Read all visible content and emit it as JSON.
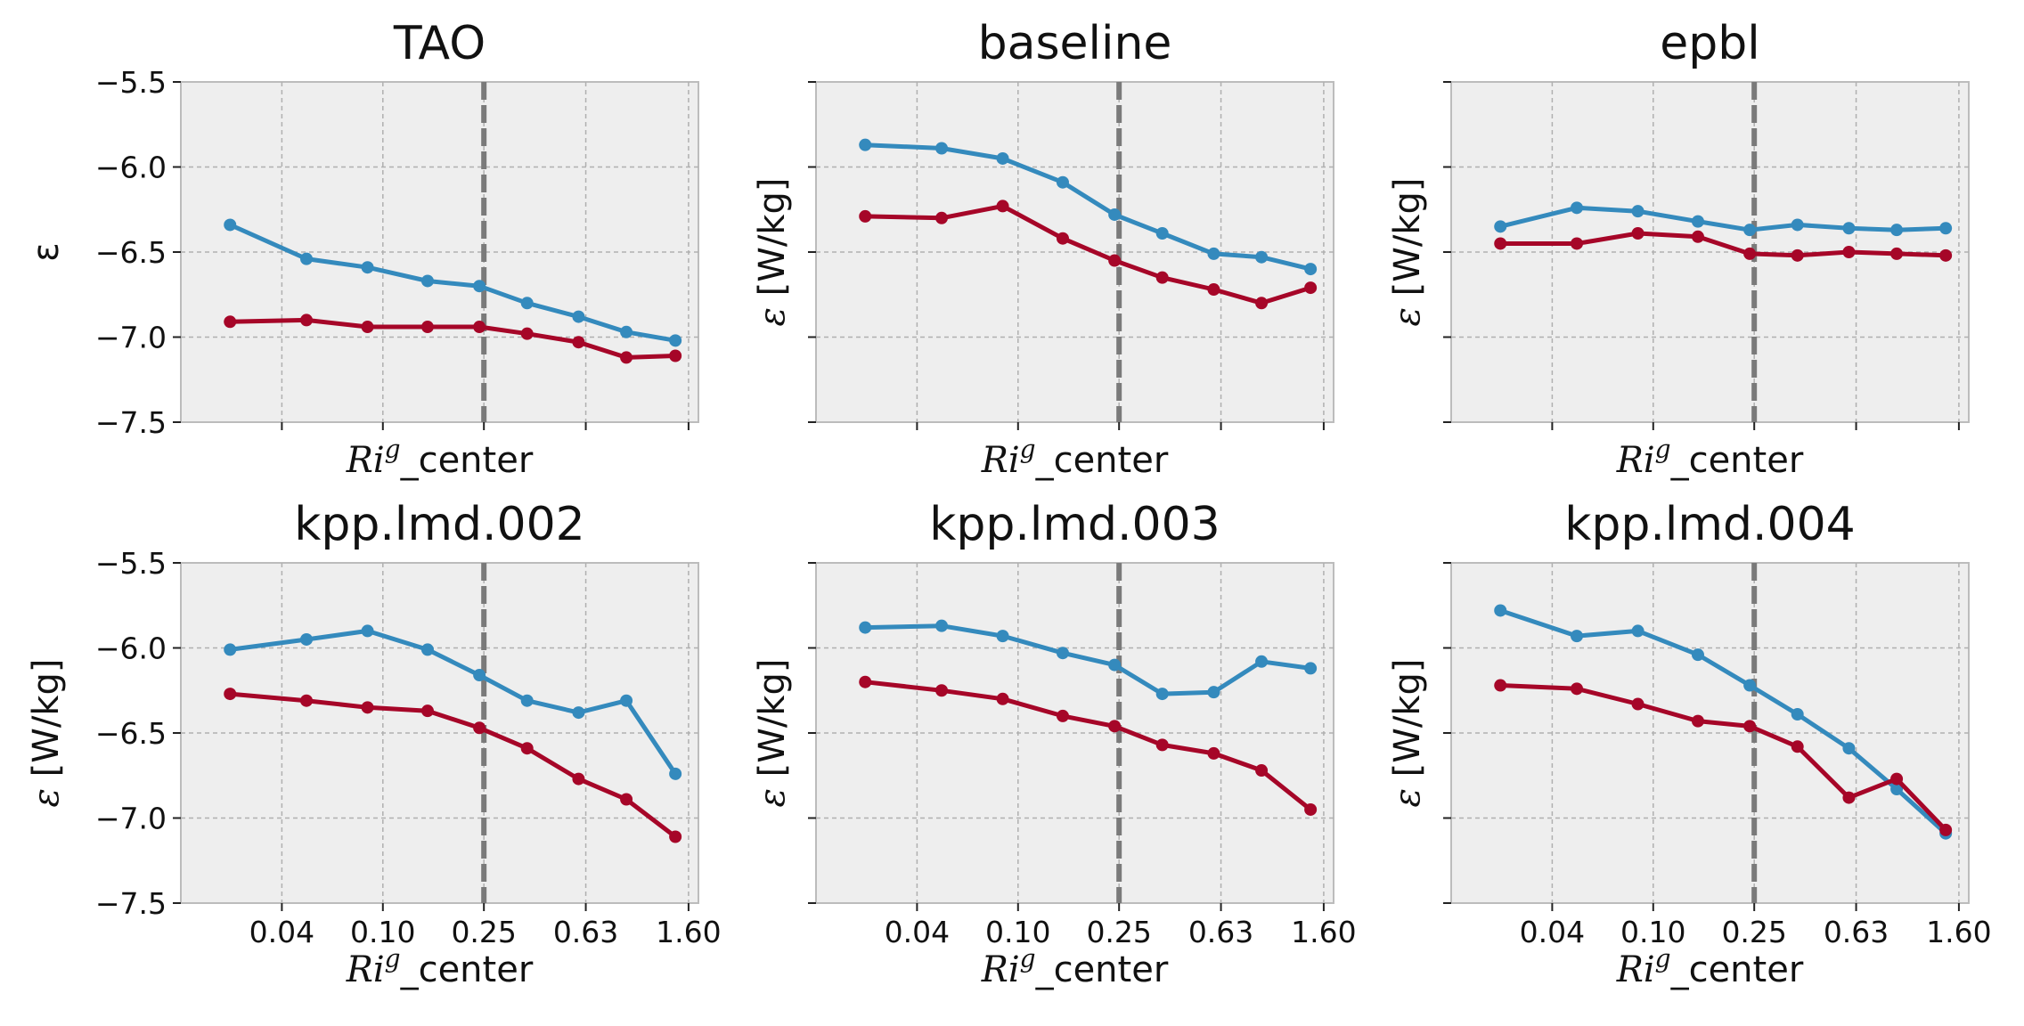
{
  "chart_data": [
    {
      "type": "line",
      "title": "TAO",
      "xlabel_math": "Ri",
      "xlabel_sup": "g",
      "xlabel_rest": "_center",
      "ylabel": "ε",
      "ylabel_is_math": false,
      "xticklabels": [
        "0.04",
        "0.10",
        "0.25",
        "0.63",
        "1.60"
      ],
      "xticks_visible": false,
      "yticks": [
        "−5.5",
        "−6.0",
        "−6.5",
        "−7.0",
        "−7.5"
      ],
      "yticks_visible": true,
      "ylim": [
        -7.5,
        -5.5
      ],
      "x": [
        0.025,
        0.05,
        0.087,
        0.15,
        0.24,
        0.37,
        0.59,
        0.91,
        1.42
      ],
      "series": [
        {
          "color": "#348ABD",
          "values": [
            -6.34,
            -6.54,
            -6.59,
            -6.67,
            -6.7,
            -6.8,
            -6.88,
            -6.97,
            -7.02
          ]
        },
        {
          "color": "#A60628",
          "values": [
            -6.91,
            -6.9,
            -6.94,
            -6.94,
            -6.94,
            -6.98,
            -7.03,
            -7.12,
            -7.11
          ]
        }
      ],
      "vline_x": 0.25,
      "grid": true
    },
    {
      "type": "line",
      "title": "baseline",
      "xlabel_math": "Ri",
      "xlabel_sup": "g",
      "xlabel_rest": "_center",
      "ylabel": "ε [W/kg]",
      "ylabel_is_math": true,
      "xticklabels": [
        "0.04",
        "0.10",
        "0.25",
        "0.63",
        "1.60"
      ],
      "xticks_visible": false,
      "yticks": [
        "−5.5",
        "−6.0",
        "−6.5",
        "−7.0",
        "−7.5"
      ],
      "yticks_visible": false,
      "ylim": [
        -7.5,
        -5.5
      ],
      "x": [
        0.025,
        0.05,
        0.087,
        0.15,
        0.24,
        0.37,
        0.59,
        0.91,
        1.42
      ],
      "series": [
        {
          "color": "#348ABD",
          "values": [
            -5.87,
            -5.89,
            -5.95,
            -6.09,
            -6.28,
            -6.39,
            -6.51,
            -6.53,
            -6.6
          ]
        },
        {
          "color": "#A60628",
          "values": [
            -6.29,
            -6.3,
            -6.23,
            -6.42,
            -6.55,
            -6.65,
            -6.72,
            -6.8,
            -6.71
          ]
        }
      ],
      "vline_x": 0.25,
      "grid": true
    },
    {
      "type": "line",
      "title": "epbl",
      "xlabel_math": "Ri",
      "xlabel_sup": "g",
      "xlabel_rest": "_center",
      "ylabel": "ε [W/kg]",
      "ylabel_is_math": true,
      "xticklabels": [
        "0.04",
        "0.10",
        "0.25",
        "0.63",
        "1.60"
      ],
      "xticks_visible": false,
      "yticks": [
        "−5.5",
        "−6.0",
        "−6.5",
        "−7.0",
        "−7.5"
      ],
      "yticks_visible": false,
      "ylim": [
        -7.5,
        -5.5
      ],
      "x": [
        0.025,
        0.05,
        0.087,
        0.15,
        0.24,
        0.37,
        0.59,
        0.91,
        1.42
      ],
      "series": [
        {
          "color": "#348ABD",
          "values": [
            -6.35,
            -6.24,
            -6.26,
            -6.32,
            -6.37,
            -6.34,
            -6.36,
            -6.37,
            -6.36
          ]
        },
        {
          "color": "#A60628",
          "values": [
            -6.45,
            -6.45,
            -6.39,
            -6.41,
            -6.51,
            -6.52,
            -6.5,
            -6.51,
            -6.52
          ]
        }
      ],
      "vline_x": 0.25,
      "grid": true
    },
    {
      "type": "line",
      "title": "kpp.lmd.002",
      "xlabel_math": "Ri",
      "xlabel_sup": "g",
      "xlabel_rest": "_center",
      "ylabel": "ε [W/kg]",
      "ylabel_is_math": true,
      "xticklabels": [
        "0.04",
        "0.10",
        "0.25",
        "0.63",
        "1.60"
      ],
      "xticks_visible": true,
      "yticks": [
        "−5.5",
        "−6.0",
        "−6.5",
        "−7.0",
        "−7.5"
      ],
      "yticks_visible": true,
      "ylim": [
        -7.5,
        -5.5
      ],
      "x": [
        0.025,
        0.05,
        0.087,
        0.15,
        0.24,
        0.37,
        0.59,
        0.91,
        1.42
      ],
      "series": [
        {
          "color": "#348ABD",
          "values": [
            -6.01,
            -5.95,
            -5.9,
            -6.01,
            -6.16,
            -6.31,
            -6.38,
            -6.31,
            -6.74
          ]
        },
        {
          "color": "#A60628",
          "values": [
            -6.27,
            -6.31,
            -6.35,
            -6.37,
            -6.47,
            -6.59,
            -6.77,
            -6.89,
            -7.11
          ]
        }
      ],
      "vline_x": 0.25,
      "grid": true
    },
    {
      "type": "line",
      "title": "kpp.lmd.003",
      "xlabel_math": "Ri",
      "xlabel_sup": "g",
      "xlabel_rest": "_center",
      "ylabel": "ε [W/kg]",
      "ylabel_is_math": true,
      "xticklabels": [
        "0.04",
        "0.10",
        "0.25",
        "0.63",
        "1.60"
      ],
      "xticks_visible": true,
      "yticks": [
        "−5.5",
        "−6.0",
        "−6.5",
        "−7.0",
        "−7.5"
      ],
      "yticks_visible": false,
      "ylim": [
        -7.5,
        -5.5
      ],
      "x": [
        0.025,
        0.05,
        0.087,
        0.15,
        0.24,
        0.37,
        0.59,
        0.91,
        1.42
      ],
      "series": [
        {
          "color": "#348ABD",
          "values": [
            -5.88,
            -5.87,
            -5.93,
            -6.03,
            -6.1,
            -6.27,
            -6.26,
            -6.08,
            -6.12
          ]
        },
        {
          "color": "#A60628",
          "values": [
            -6.2,
            -6.25,
            -6.3,
            -6.4,
            -6.46,
            -6.57,
            -6.62,
            -6.72,
            -6.95
          ]
        }
      ],
      "vline_x": 0.25,
      "grid": true
    },
    {
      "type": "line",
      "title": "kpp.lmd.004",
      "xlabel_math": "Ri",
      "xlabel_sup": "g",
      "xlabel_rest": "_center",
      "ylabel": "ε [W/kg]",
      "ylabel_is_math": true,
      "xticklabels": [
        "0.04",
        "0.10",
        "0.25",
        "0.63",
        "1.60"
      ],
      "xticks_visible": true,
      "yticks": [
        "−5.5",
        "−6.0",
        "−6.5",
        "−7.0",
        "−7.5"
      ],
      "yticks_visible": false,
      "ylim": [
        -7.5,
        -5.5
      ],
      "x": [
        0.025,
        0.05,
        0.087,
        0.15,
        0.24,
        0.37,
        0.59,
        0.91,
        1.42
      ],
      "series": [
        {
          "color": "#348ABD",
          "values": [
            -5.78,
            -5.93,
            -5.9,
            -6.04,
            -6.22,
            -6.39,
            -6.59,
            -6.83,
            -7.09
          ]
        },
        {
          "color": "#A60628",
          "values": [
            -6.22,
            -6.24,
            -6.33,
            -6.43,
            -6.46,
            -6.58,
            -6.88,
            -6.77,
            -7.07
          ]
        }
      ],
      "vline_x": 0.25,
      "grid": true
    }
  ]
}
